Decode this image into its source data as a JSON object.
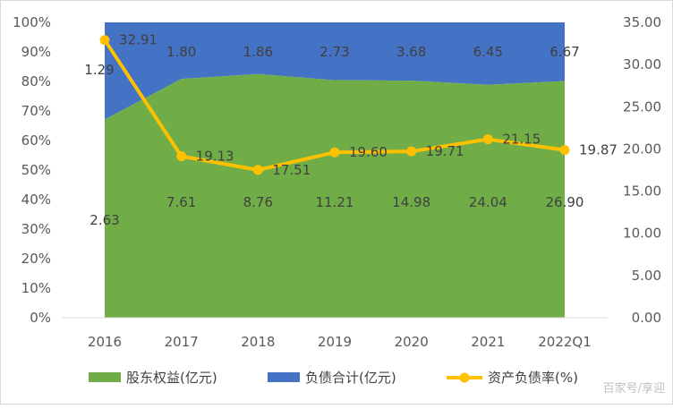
{
  "chart_data": {
    "type": "area",
    "stacking": "percent",
    "categories": [
      "2016",
      "2017",
      "2018",
      "2019",
      "2020",
      "2021",
      "2022Q1"
    ],
    "series": [
      {
        "name": "股东权益(亿元)",
        "kind": "area",
        "axis": "left",
        "color": "#70AD47",
        "values": [
          2.63,
          7.61,
          8.76,
          11.21,
          14.98,
          24.04,
          26.9
        ]
      },
      {
        "name": "负债合计(亿元)",
        "kind": "area",
        "axis": "left",
        "color": "#4472C4",
        "values": [
          1.29,
          1.8,
          1.86,
          2.73,
          3.68,
          6.45,
          6.67
        ]
      },
      {
        "name": "资产负债率(%)",
        "kind": "line",
        "axis": "right",
        "color": "#FFC000",
        "values": [
          32.91,
          19.13,
          17.51,
          19.6,
          19.71,
          21.15,
          19.87
        ]
      }
    ],
    "y_left": {
      "ylim": [
        0,
        100
      ],
      "ticks": [
        "0%",
        "10%",
        "20%",
        "30%",
        "40%",
        "50%",
        "60%",
        "70%",
        "80%",
        "90%",
        "100%"
      ]
    },
    "y_right": {
      "ylim": [
        0,
        35
      ],
      "ticks": [
        "0.00",
        "5.00",
        "10.00",
        "15.00",
        "20.00",
        "25.00",
        "30.00",
        "35.00"
      ]
    },
    "legend": "bottom",
    "grid": false,
    "title": "",
    "xlabel": "",
    "ylabel": ""
  },
  "watermark": "百家号/享迎"
}
